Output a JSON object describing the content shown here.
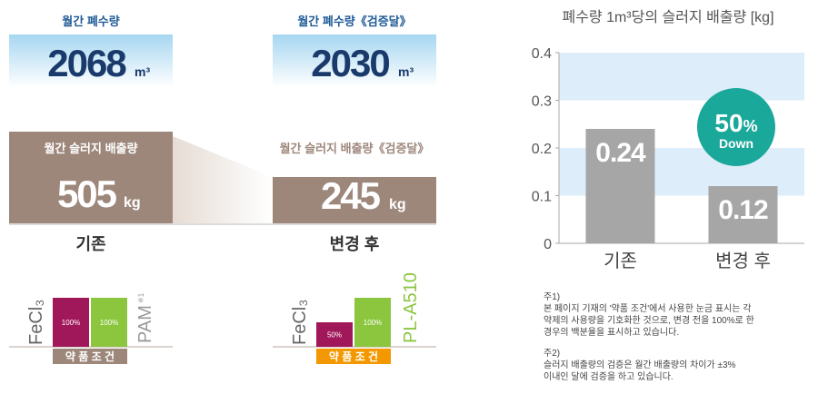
{
  "left": {
    "before": {
      "water_title": "월간 폐수량",
      "water_value": "2068",
      "water_unit": "m³",
      "sludge_title": "월간 슬러지 배출량",
      "sludge_value": "505",
      "sludge_unit": "kg",
      "label": "기존"
    },
    "after": {
      "water_title": "월간 폐수량《검증달》",
      "water_value": "2030",
      "water_unit": "m³",
      "sludge_title": "월간 슬러지 배출량《검증달》",
      "sludge_value": "245",
      "sludge_unit": "kg",
      "label": "변경 후"
    },
    "chemicals": {
      "before": {
        "coagulant": "FeCl₃",
        "polymer": "PAM",
        "note": "※1",
        "condition": "약 품 조 건",
        "values": [
          100,
          100
        ],
        "value_labels": [
          "100%",
          "100%"
        ]
      },
      "after": {
        "coagulant": "FeCl₃",
        "polymer": "PL-A510",
        "condition": "약 품 조 건",
        "values": [
          50,
          100
        ],
        "value_labels": [
          "50%",
          "100%"
        ]
      }
    }
  },
  "chart_data": {
    "type": "bar",
    "title": "폐수량 1m³당의 슬러지 배출량 [kg]",
    "categories": [
      "기존",
      "변경 후"
    ],
    "values": [
      0.24,
      0.12
    ],
    "color": "#a6a6a6",
    "ylim": [
      0,
      0.4
    ],
    "yticks": [
      0,
      0.1,
      0.2,
      0.3,
      0.4
    ],
    "band_color": "#ddeefa",
    "annotation": {
      "value": "50",
      "unit": "%",
      "text": "Down",
      "color": "#1aa89a"
    }
  },
  "notes": [
    {
      "label": "주1)",
      "lines": [
        "본 페이지 기재의 '약품 조건'에서 사용한 눈금 표시는 각",
        "약제의 사용량을 기호화한 것으로, 변경 전을 100%로 한",
        "경우의 백분율을 표시하고 있습니다."
      ]
    },
    {
      "label": "주2)",
      "lines": [
        "슬러지 배출량의 검증은 월간 배출량의 차이가 ±3%",
        "이내인 달에 검증을 하고 있습니다."
      ]
    }
  ]
}
